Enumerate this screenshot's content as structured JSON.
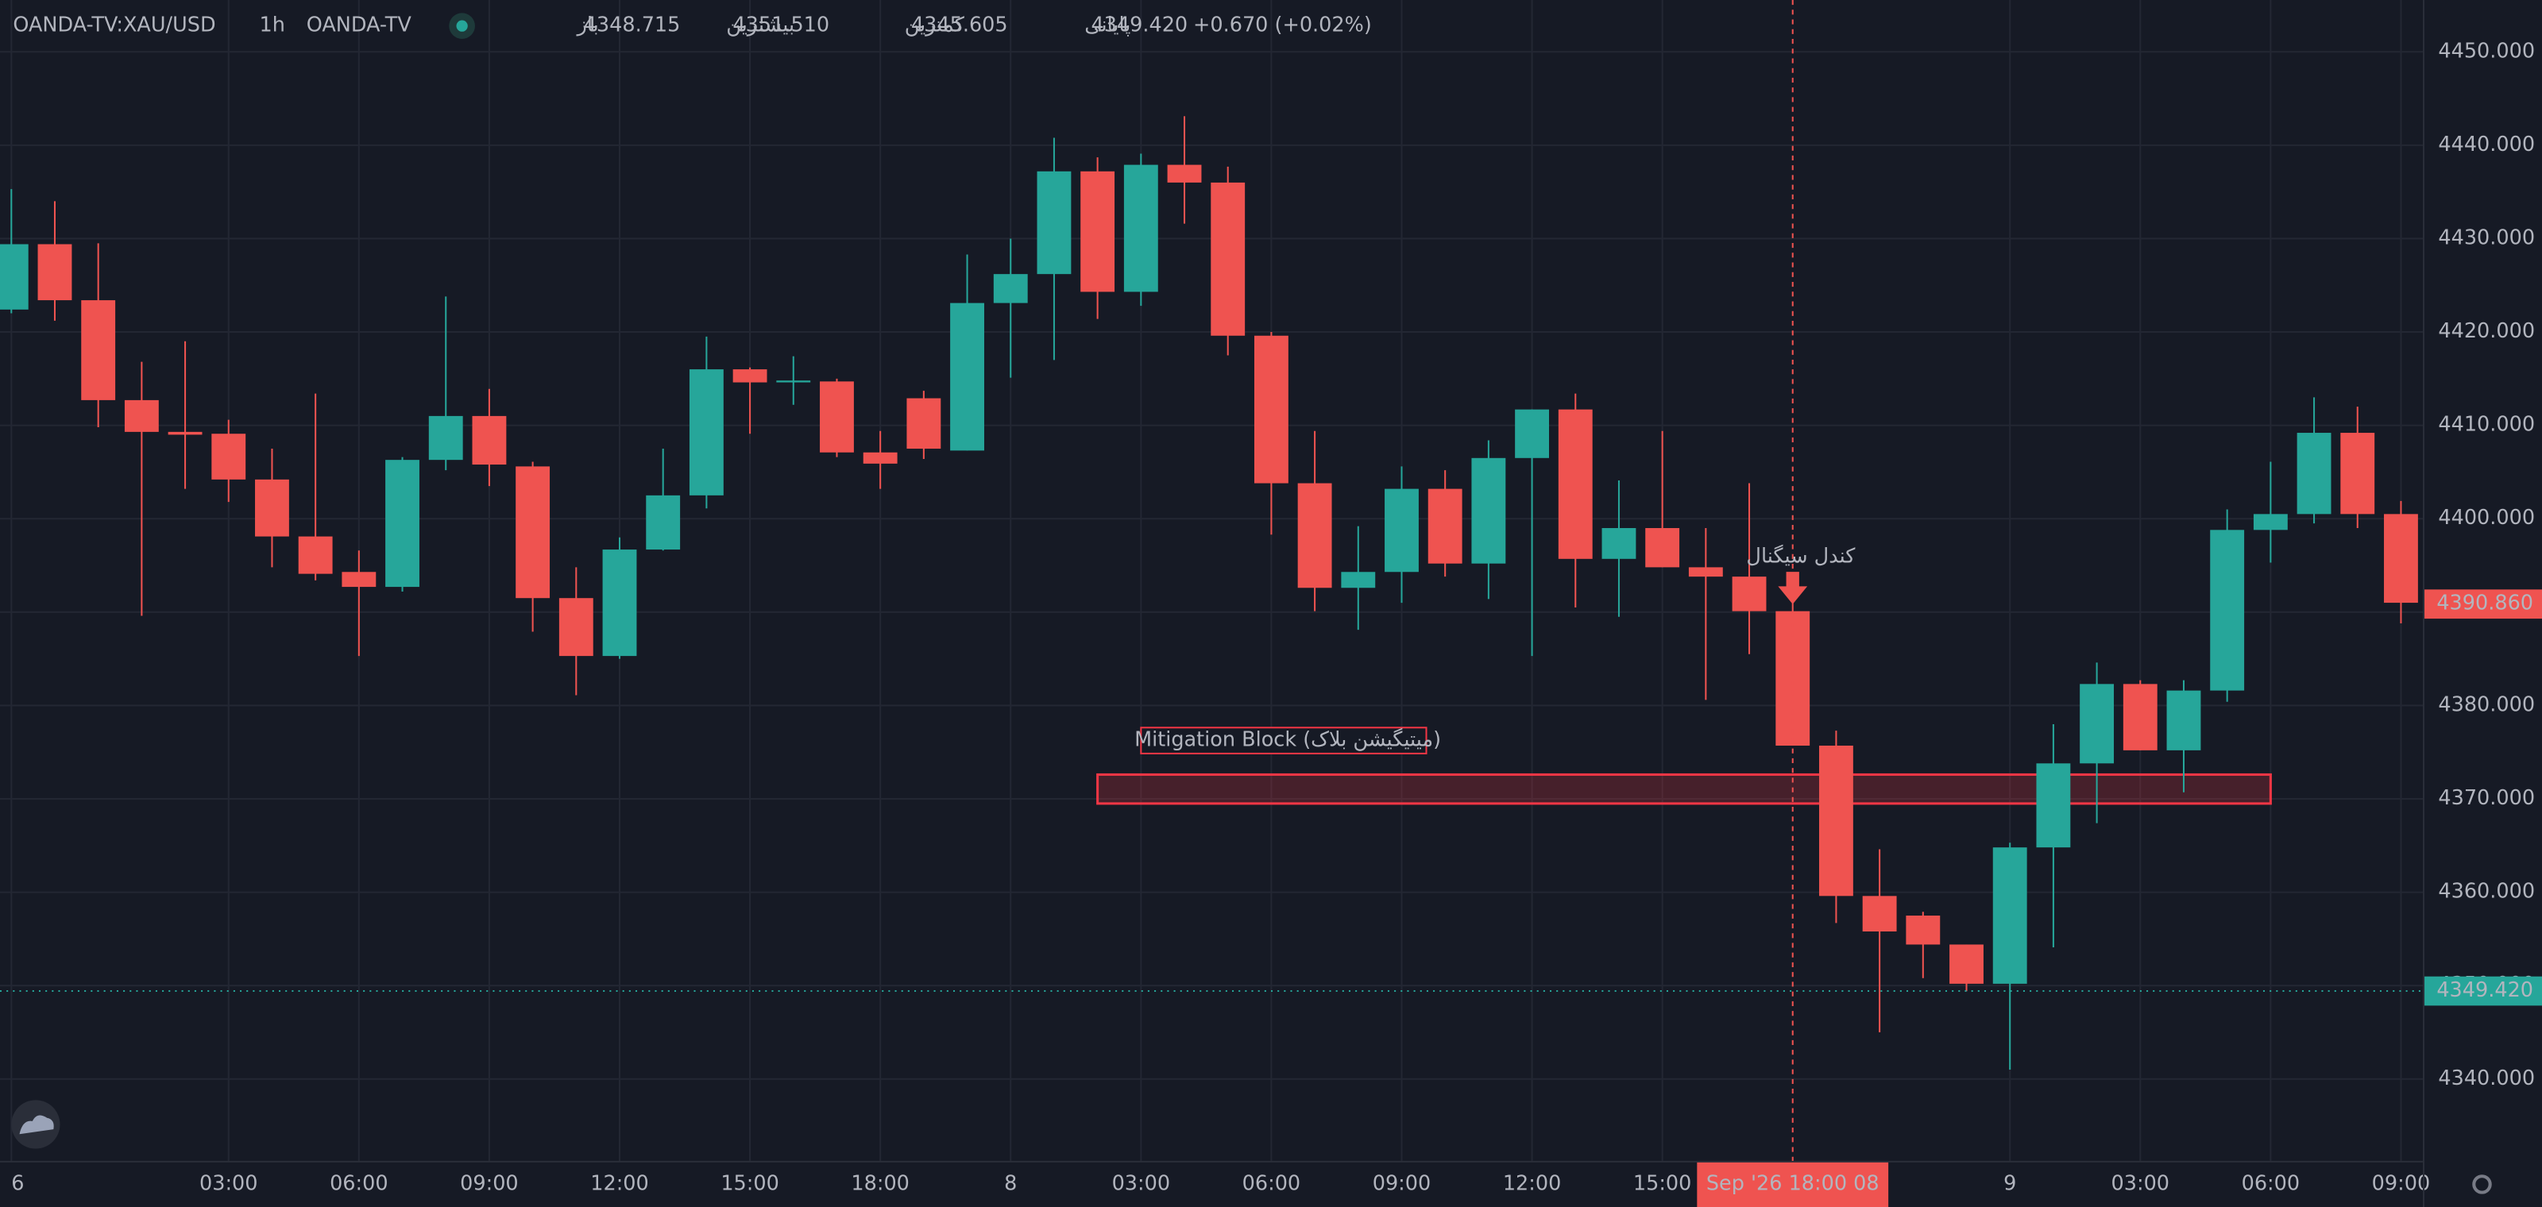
{
  "chart_data": {
    "type": "candlestick",
    "header": {
      "symbol": "OANDA-TV:XAU/USD",
      "interval": "1h",
      "source": "OANDA-TV",
      "ohlc": [
        {
          "label": "باز",
          "value": "4348.715"
        },
        {
          "label": "بیشترین",
          "value": "4351.510"
        },
        {
          "label": "کمترین",
          "value": "4345.605"
        },
        {
          "label": "پایانی",
          "value": "4349.420"
        }
      ],
      "change": "+0.670 (+0.02%)"
    },
    "categories": [
      "6",
      null,
      null,
      null,
      null,
      "03:00",
      null,
      null,
      "06:00",
      null,
      null,
      "09:00",
      null,
      null,
      "12:00",
      null,
      null,
      "15:00",
      null,
      null,
      "18:00",
      null,
      null,
      "8",
      null,
      null,
      "03:00",
      null,
      null,
      "06:00",
      null,
      null,
      "09:00",
      null,
      null,
      "12:00",
      null,
      null,
      "15:00",
      null,
      null,
      null,
      null,
      null,
      null,
      null,
      "9",
      null,
      null,
      "03:00",
      null,
      null,
      "06:00",
      null,
      null,
      "09:00"
    ],
    "open": [
      4422.4,
      4429.4,
      4423.4,
      4412.7,
      4409.3,
      4409.1,
      4404.2,
      4398.1,
      4394.3,
      4392.7,
      4406.3,
      4411.0,
      4405.6,
      4391.5,
      4385.3,
      4396.7,
      4402.5,
      4416.0,
      4414.6,
      4414.7,
      4407.1,
      4412.9,
      4407.3,
      4423.1,
      4426.2,
      4437.2,
      4424.3,
      4437.9,
      4436.0,
      4419.6,
      4403.8,
      4392.6,
      4394.3,
      4403.2,
      4395.2,
      4406.5,
      4411.7,
      4395.7,
      4399.0,
      4394.8,
      4393.8,
      4390.1,
      4375.7,
      4359.6,
      4357.5,
      4354.4,
      4350.2,
      4364.8,
      4373.8,
      4382.3,
      4375.2,
      4381.6,
      4398.8,
      4400.5,
      4409.2,
      4400.5
    ],
    "high": [
      4435.3,
      4434.0,
      4429.5,
      4416.8,
      4419.0,
      4410.6,
      4407.5,
      4413.4,
      4396.6,
      4406.6,
      4423.8,
      4413.9,
      4406.1,
      4394.8,
      4398.0,
      4407.5,
      4419.5,
      4416.2,
      4417.4,
      4415.0,
      4409.4,
      4413.7,
      4428.3,
      4430.0,
      4440.8,
      4438.7,
      4439.1,
      4443.1,
      4437.7,
      4420.0,
      4409.4,
      4399.2,
      4405.6,
      4405.2,
      4408.4,
      4411.7,
      4413.4,
      4404.1,
      4409.4,
      4399.0,
      4403.8,
      4390.5,
      4377.3,
      4364.6,
      4357.9,
      4354.4,
      4365.3,
      4378.0,
      4384.6,
      4382.7,
      4382.7,
      4401.0,
      4406.1,
      4413.0,
      4412.0,
      4401.9
    ],
    "low": [
      4422.0,
      4421.2,
      4409.8,
      4389.6,
      4403.2,
      4401.8,
      4394.8,
      4393.4,
      4385.3,
      4392.2,
      4405.2,
      4403.5,
      4387.9,
      4381.1,
      4385.0,
      4396.6,
      4401.1,
      4409.1,
      4412.2,
      4406.6,
      4403.2,
      4406.4,
      4407.3,
      4415.1,
      4417.0,
      4421.4,
      4422.8,
      4431.6,
      4417.5,
      4398.3,
      4390.1,
      4388.1,
      4391.0,
      4393.8,
      4391.4,
      4385.3,
      4390.5,
      4389.5,
      4394.8,
      4380.6,
      4385.5,
      4375.7,
      4356.7,
      4345.0,
      4350.8,
      4349.4,
      4341.0,
      4354.1,
      4367.4,
      4375.2,
      4370.7,
      4380.4,
      4395.3,
      4399.5,
      4399.0,
      4388.8
    ],
    "close": [
      4429.4,
      4423.4,
      4412.7,
      4409.3,
      4409.0,
      4404.2,
      4398.1,
      4394.1,
      4392.7,
      4406.3,
      4411.0,
      4405.8,
      4391.5,
      4385.3,
      4396.7,
      4402.5,
      4416.0,
      4414.6,
      4414.8,
      4407.1,
      4405.9,
      4407.5,
      4423.1,
      4426.2,
      4437.2,
      4424.3,
      4437.9,
      4436.0,
      4419.6,
      4403.8,
      4392.6,
      4394.3,
      4403.2,
      4395.2,
      4406.5,
      4411.7,
      4395.7,
      4399.0,
      4394.8,
      4393.8,
      4390.1,
      4375.7,
      4359.6,
      4355.8,
      4354.4,
      4350.2,
      4364.8,
      4373.8,
      4382.3,
      4375.2,
      4381.6,
      4398.8,
      4400.5,
      4409.2,
      4400.5,
      4391.0
    ],
    "up_color": "#26a69a",
    "down_color": "#ef5350",
    "ylim": [
      4331.15,
      4455.55
    ],
    "yticks": [
      {
        "value": 4340,
        "label": "4340.000"
      },
      {
        "value": 4350,
        "label": "4350.000"
      },
      {
        "value": 4360,
        "label": "4360.000"
      },
      {
        "value": 4370,
        "label": "4370.000"
      },
      {
        "value": 4380,
        "label": "4380.000"
      },
      {
        "value": 4390,
        "label": "4390.000"
      },
      {
        "value": 4400,
        "label": "4400.000"
      },
      {
        "value": 4410,
        "label": "4410.000"
      },
      {
        "value": 4420,
        "label": "4420.000"
      },
      {
        "value": 4430,
        "label": "4430.000"
      },
      {
        "value": 4440,
        "label": "4440.000"
      },
      {
        "value": 4450,
        "label": "4450.000"
      }
    ],
    "grid": true,
    "last_bar_price": {
      "value": 4390.86,
      "label": "4390.860"
    },
    "last_price": {
      "value": 4349.42,
      "label": "4349.420"
    },
    "crosshair": {
      "index": 41,
      "label": "Sep '26   18:00 08"
    },
    "signal": {
      "index": 41,
      "label": "کندل سیگنال"
    },
    "zone": {
      "start": 25,
      "end": 52,
      "top": 4372.6,
      "bottom": 4369.5,
      "label": "Mitigation Block (میتیگیشن بلاک)"
    }
  }
}
